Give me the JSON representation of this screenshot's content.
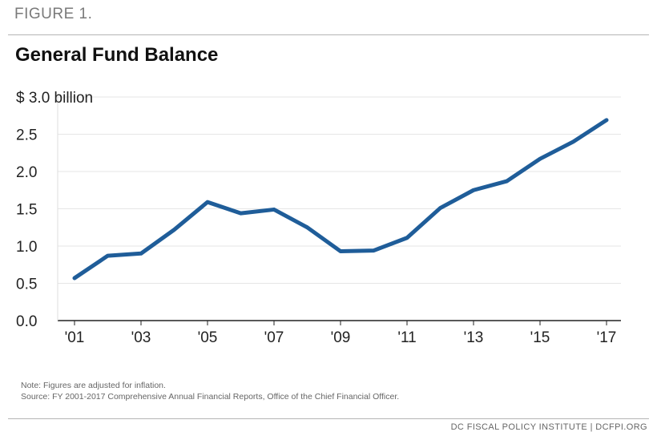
{
  "figure_label": "FIGURE 1.",
  "notes": {
    "note": "Note: Figures are adjusted for inflation.",
    "source": "Source: FY 2001-2017 Comprehensive Annual Financial Reports, Office of the Chief Financial Officer."
  },
  "footer": "DC FISCAL POLICY INSTITUTE | DCFPI.ORG",
  "colors": {
    "line": "#1f5d99",
    "grid": "#e6e6e6",
    "axis": "#222222"
  },
  "chart_data": {
    "type": "line",
    "title": "General Fund Balance",
    "xlabel": "",
    "ylabel": "",
    "x": [
      2001,
      2002,
      2003,
      2004,
      2005,
      2006,
      2007,
      2008,
      2009,
      2010,
      2011,
      2012,
      2013,
      2014,
      2015,
      2016,
      2017
    ],
    "series": [
      {
        "values": [
          0.57,
          0.87,
          0.9,
          1.22,
          1.59,
          1.44,
          1.49,
          1.25,
          0.93,
          0.94,
          1.11,
          1.51,
          1.75,
          1.87,
          2.17,
          2.4,
          2.69
        ]
      }
    ],
    "ylim": [
      0,
      3.0
    ],
    "y_ticks": [
      {
        "value": 0.0,
        "label": "0.0"
      },
      {
        "value": 0.5,
        "label": "0.5"
      },
      {
        "value": 1.0,
        "label": "1.0"
      },
      {
        "value": 1.5,
        "label": "1.5"
      },
      {
        "value": 2.0,
        "label": "2.0"
      },
      {
        "value": 2.5,
        "label": "2.5"
      },
      {
        "value": 3.0,
        "label": "$ 3.0 billion"
      }
    ],
    "x_ticks": [
      {
        "value": 2001,
        "label": "'01"
      },
      {
        "value": 2003,
        "label": "'03"
      },
      {
        "value": 2005,
        "label": "'05"
      },
      {
        "value": 2007,
        "label": "'07"
      },
      {
        "value": 2009,
        "label": "'09"
      },
      {
        "value": 2011,
        "label": "'11"
      },
      {
        "value": 2013,
        "label": "'13"
      },
      {
        "value": 2015,
        "label": "'15"
      },
      {
        "value": 2017,
        "label": "'17"
      }
    ],
    "grid": true,
    "legend": "none"
  }
}
